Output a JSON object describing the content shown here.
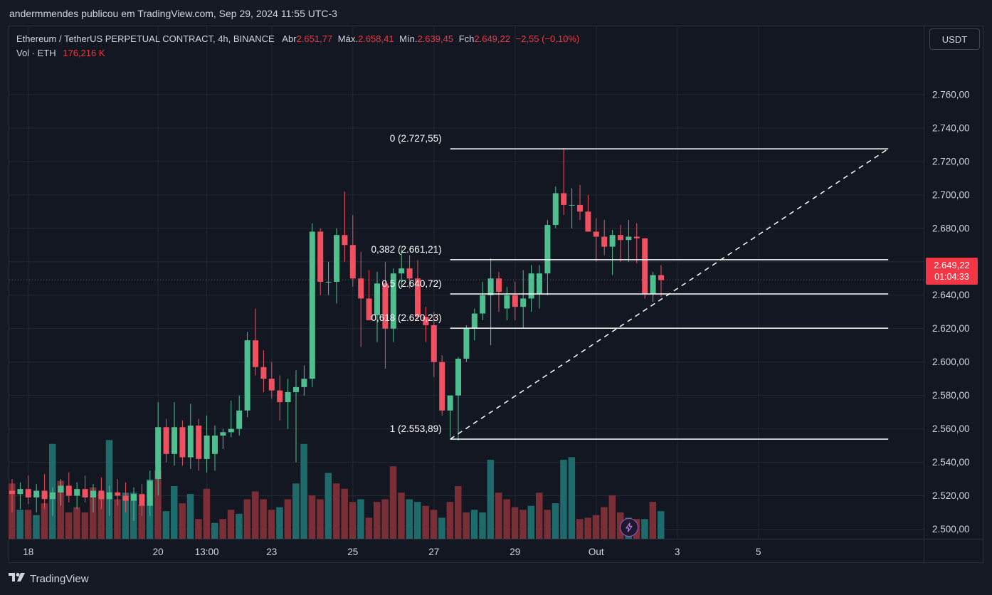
{
  "header": {
    "published": "andermmendes publicou em TradingView.com, Sep 29, 2024 11:55 UTC-3"
  },
  "legend": {
    "symbol": "Ethereum / TetherUS PERPETUAL CONTRACT, 4h, BINANCE",
    "open_label": "Abr",
    "open": "2.651,77",
    "high_label": "Máx.",
    "high": "2.658,41",
    "low_label": "Mín.",
    "low": "2.639,45",
    "close_label": "Fch",
    "close": "2.649,22",
    "change": "−2,55 (−0,10%)",
    "vol_label": "Vol · ETH",
    "vol_value": "176,216 K"
  },
  "currency": "USDT",
  "price_tag": {
    "price": "2.649,22",
    "countdown": "01:04:33"
  },
  "footer": {
    "brand": "TradingView"
  },
  "colors": {
    "up": "#26a69a",
    "down": "#ef5350",
    "up_vol": "#1f6b6b",
    "down_vol": "#7a2e35",
    "up_body": "#4fbf8f",
    "down_body": "#f0505f",
    "tag": "#f23645",
    "grid": "#242832"
  },
  "chart_data": {
    "type": "candlestick",
    "title": "Ethereum / TetherUS PERPETUAL CONTRACT, 4h, BINANCE",
    "ylim": [
      2485,
      2775
    ],
    "y_ticks": [
      2500,
      2520,
      2540,
      2560,
      2580,
      2600,
      2620,
      2640,
      2660,
      2680,
      2700,
      2720,
      2740,
      2760
    ],
    "y_tick_labels": [
      "2.500,00",
      "2.520,00",
      "2.540,00",
      "2.560,00",
      "2.580,00",
      "2.600,00",
      "2.620,00",
      "2.640,00",
      "2.660,00",
      "2.680,00",
      "2.700,00",
      "2.720,00",
      "2.740,00",
      "2.760,00"
    ],
    "x_labels": [
      "18",
      "20",
      "13:00",
      "23",
      "25",
      "27",
      "29",
      "Out",
      "3",
      "5"
    ],
    "x_label_bar_index": [
      2,
      18,
      24,
      32,
      42,
      52,
      62,
      72,
      82,
      92
    ],
    "last_price": 2649.22,
    "candles": [
      {
        "o": 2523,
        "h": 2530,
        "l": 2510,
        "c": 2521
      },
      {
        "o": 2521,
        "h": 2528,
        "l": 2512,
        "c": 2524
      },
      {
        "o": 2524,
        "h": 2532,
        "l": 2515,
        "c": 2519
      },
      {
        "o": 2519,
        "h": 2527,
        "l": 2510,
        "c": 2523
      },
      {
        "o": 2523,
        "h": 2533,
        "l": 2512,
        "c": 2518
      },
      {
        "o": 2518,
        "h": 2525,
        "l": 2508,
        "c": 2522
      },
      {
        "o": 2522,
        "h": 2530,
        "l": 2514,
        "c": 2526
      },
      {
        "o": 2526,
        "h": 2534,
        "l": 2516,
        "c": 2520
      },
      {
        "o": 2520,
        "h": 2528,
        "l": 2512,
        "c": 2524
      },
      {
        "o": 2524,
        "h": 2532,
        "l": 2516,
        "c": 2519
      },
      {
        "o": 2519,
        "h": 2527,
        "l": 2510,
        "c": 2523
      },
      {
        "o": 2523,
        "h": 2531,
        "l": 2512,
        "c": 2518
      },
      {
        "o": 2518,
        "h": 2526,
        "l": 2508,
        "c": 2522
      },
      {
        "o": 2522,
        "h": 2530,
        "l": 2514,
        "c": 2520
      },
      {
        "o": 2520,
        "h": 2528,
        "l": 2510,
        "c": 2517
      },
      {
        "o": 2517,
        "h": 2525,
        "l": 2505,
        "c": 2521
      },
      {
        "o": 2521,
        "h": 2527,
        "l": 2508,
        "c": 2514
      },
      {
        "o": 2514,
        "h": 2535,
        "l": 2508,
        "c": 2529
      },
      {
        "o": 2530,
        "h": 2576,
        "l": 2520,
        "c": 2561
      },
      {
        "o": 2561,
        "h": 2566,
        "l": 2540,
        "c": 2545
      },
      {
        "o": 2545,
        "h": 2576,
        "l": 2538,
        "c": 2561
      },
      {
        "o": 2561,
        "h": 2565,
        "l": 2538,
        "c": 2543
      },
      {
        "o": 2543,
        "h": 2575,
        "l": 2536,
        "c": 2562
      },
      {
        "o": 2562,
        "h": 2566,
        "l": 2535,
        "c": 2542
      },
      {
        "o": 2542,
        "h": 2568,
        "l": 2534,
        "c": 2556
      },
      {
        "o": 2545,
        "h": 2562,
        "l": 2535,
        "c": 2556
      },
      {
        "o": 2556,
        "h": 2560,
        "l": 2548,
        "c": 2558
      },
      {
        "o": 2558,
        "h": 2577,
        "l": 2555,
        "c": 2560
      },
      {
        "o": 2560,
        "h": 2580,
        "l": 2556,
        "c": 2571
      },
      {
        "o": 2571,
        "h": 2618,
        "l": 2567,
        "c": 2613
      },
      {
        "o": 2613,
        "h": 2632,
        "l": 2592,
        "c": 2597
      },
      {
        "o": 2597,
        "h": 2607,
        "l": 2582,
        "c": 2590
      },
      {
        "o": 2590,
        "h": 2600,
        "l": 2578,
        "c": 2583
      },
      {
        "o": 2583,
        "h": 2592,
        "l": 2565,
        "c": 2576
      },
      {
        "o": 2576,
        "h": 2590,
        "l": 2560,
        "c": 2582
      },
      {
        "o": 2582,
        "h": 2595,
        "l": 2540,
        "c": 2585
      },
      {
        "o": 2585,
        "h": 2598,
        "l": 2580,
        "c": 2590
      },
      {
        "o": 2590,
        "h": 2683,
        "l": 2585,
        "c": 2678
      },
      {
        "o": 2678,
        "h": 2680,
        "l": 2640,
        "c": 2648
      },
      {
        "o": 2648,
        "h": 2660,
        "l": 2640,
        "c": 2648
      },
      {
        "o": 2648,
        "h": 2680,
        "l": 2635,
        "c": 2676
      },
      {
        "o": 2676,
        "h": 2702,
        "l": 2660,
        "c": 2670
      },
      {
        "o": 2670,
        "h": 2688,
        "l": 2645,
        "c": 2650
      },
      {
        "o": 2650,
        "h": 2666,
        "l": 2609,
        "c": 2638
      },
      {
        "o": 2638,
        "h": 2655,
        "l": 2625,
        "c": 2625
      },
      {
        "o": 2628,
        "h": 2654,
        "l": 2612,
        "c": 2647
      },
      {
        "o": 2647,
        "h": 2660,
        "l": 2596,
        "c": 2620
      },
      {
        "o": 2620,
        "h": 2656,
        "l": 2612,
        "c": 2653
      },
      {
        "o": 2653,
        "h": 2668,
        "l": 2644,
        "c": 2656
      },
      {
        "o": 2656,
        "h": 2664,
        "l": 2644,
        "c": 2650
      },
      {
        "o": 2650,
        "h": 2661,
        "l": 2625,
        "c": 2627
      },
      {
        "o": 2627,
        "h": 2633,
        "l": 2612,
        "c": 2622
      },
      {
        "o": 2622,
        "h": 2630,
        "l": 2591,
        "c": 2600
      },
      {
        "o": 2600,
        "h": 2604,
        "l": 2568,
        "c": 2571
      },
      {
        "o": 2571,
        "h": 2578,
        "l": 2555,
        "c": 2580
      },
      {
        "o": 2580,
        "h": 2603,
        "l": 2553,
        "c": 2602
      },
      {
        "o": 2602,
        "h": 2622,
        "l": 2600,
        "c": 2620
      },
      {
        "o": 2620,
        "h": 2632,
        "l": 2613,
        "c": 2629
      },
      {
        "o": 2629,
        "h": 2648,
        "l": 2625,
        "c": 2640
      },
      {
        "o": 2640,
        "h": 2662,
        "l": 2610,
        "c": 2650
      },
      {
        "o": 2650,
        "h": 2654,
        "l": 2630,
        "c": 2642
      },
      {
        "o": 2632,
        "h": 2645,
        "l": 2625,
        "c": 2640
      },
      {
        "o": 2640,
        "h": 2648,
        "l": 2625,
        "c": 2633
      },
      {
        "o": 2633,
        "h": 2655,
        "l": 2620,
        "c": 2638
      },
      {
        "o": 2638,
        "h": 2658,
        "l": 2630,
        "c": 2653
      },
      {
        "o": 2641,
        "h": 2658,
        "l": 2632,
        "c": 2653
      },
      {
        "o": 2653,
        "h": 2685,
        "l": 2640,
        "c": 2682
      },
      {
        "o": 2682,
        "h": 2705,
        "l": 2680,
        "c": 2701
      },
      {
        "o": 2701,
        "h": 2728,
        "l": 2688,
        "c": 2694
      },
      {
        "o": 2694,
        "h": 2704,
        "l": 2680,
        "c": 2694
      },
      {
        "o": 2694,
        "h": 2706,
        "l": 2685,
        "c": 2690
      },
      {
        "o": 2690,
        "h": 2700,
        "l": 2678,
        "c": 2678
      },
      {
        "o": 2678,
        "h": 2686,
        "l": 2660,
        "c": 2675
      },
      {
        "o": 2675,
        "h": 2685,
        "l": 2664,
        "c": 2669
      },
      {
        "o": 2669,
        "h": 2679,
        "l": 2652,
        "c": 2676
      },
      {
        "o": 2676,
        "h": 2682,
        "l": 2660,
        "c": 2673
      },
      {
        "o": 2673,
        "h": 2685,
        "l": 2660,
        "c": 2675
      },
      {
        "o": 2675,
        "h": 2683,
        "l": 2659,
        "c": 2674
      },
      {
        "o": 2674,
        "h": 2674,
        "l": 2638,
        "c": 2641
      },
      {
        "o": 2641,
        "h": 2654,
        "l": 2636,
        "c": 2652
      },
      {
        "o": 2652,
        "h": 2658,
        "l": 2639,
        "c": 2649
      }
    ],
    "volume": [
      {
        "v": 0.42,
        "up": false
      },
      {
        "v": 0.22,
        "up": true
      },
      {
        "v": 0.22,
        "up": false
      },
      {
        "v": 0.18,
        "up": true
      },
      {
        "v": 0.27,
        "up": false
      },
      {
        "v": 0.72,
        "up": true
      },
      {
        "v": 0.44,
        "up": false
      },
      {
        "v": 0.2,
        "up": false
      },
      {
        "v": 0.24,
        "up": false
      },
      {
        "v": 0.2,
        "up": false
      },
      {
        "v": 0.39,
        "up": false
      },
      {
        "v": 0.35,
        "up": false
      },
      {
        "v": 0.75,
        "up": true
      },
      {
        "v": 0.3,
        "up": false
      },
      {
        "v": 0.35,
        "up": true
      },
      {
        "v": 0.35,
        "up": true
      },
      {
        "v": 0.26,
        "up": false
      },
      {
        "v": 0.45,
        "up": true
      },
      {
        "v": 0.52,
        "up": false
      },
      {
        "v": 0.21,
        "up": true
      },
      {
        "v": 0.4,
        "up": true
      },
      {
        "v": 0.27,
        "up": false
      },
      {
        "v": 0.34,
        "up": true
      },
      {
        "v": 0.15,
        "up": false
      },
      {
        "v": 0.38,
        "up": false
      },
      {
        "v": 0.12,
        "up": true
      },
      {
        "v": 0.15,
        "up": false
      },
      {
        "v": 0.22,
        "up": false
      },
      {
        "v": 0.19,
        "up": true
      },
      {
        "v": 0.3,
        "up": false
      },
      {
        "v": 0.36,
        "up": false
      },
      {
        "v": 0.3,
        "up": false
      },
      {
        "v": 0.22,
        "up": false
      },
      {
        "v": 0.24,
        "up": true
      },
      {
        "v": 0.3,
        "up": false
      },
      {
        "v": 0.42,
        "up": true
      },
      {
        "v": 0.72,
        "up": true
      },
      {
        "v": 0.33,
        "up": false
      },
      {
        "v": 0.3,
        "up": false
      },
      {
        "v": 0.5,
        "up": true
      },
      {
        "v": 0.42,
        "up": false
      },
      {
        "v": 0.38,
        "up": false
      },
      {
        "v": 0.28,
        "up": false
      },
      {
        "v": 0.3,
        "up": true
      },
      {
        "v": 0.16,
        "up": false
      },
      {
        "v": 0.28,
        "up": false
      },
      {
        "v": 0.3,
        "up": false
      },
      {
        "v": 0.55,
        "up": false
      },
      {
        "v": 0.35,
        "up": false
      },
      {
        "v": 0.3,
        "up": true
      },
      {
        "v": 0.28,
        "up": true
      },
      {
        "v": 0.25,
        "up": false
      },
      {
        "v": 0.22,
        "up": false
      },
      {
        "v": 0.16,
        "up": true
      },
      {
        "v": 0.28,
        "up": false
      },
      {
        "v": 0.4,
        "up": false
      },
      {
        "v": 0.2,
        "up": false
      },
      {
        "v": 0.22,
        "up": true
      },
      {
        "v": 0.2,
        "up": true
      },
      {
        "v": 0.6,
        "up": true
      },
      {
        "v": 0.35,
        "up": false
      },
      {
        "v": 0.3,
        "up": false
      },
      {
        "v": 0.24,
        "up": false
      },
      {
        "v": 0.22,
        "up": false
      },
      {
        "v": 0.25,
        "up": true
      },
      {
        "v": 0.35,
        "up": false
      },
      {
        "v": 0.22,
        "up": false
      },
      {
        "v": 0.27,
        "up": true
      },
      {
        "v": 0.6,
        "up": true
      },
      {
        "v": 0.62,
        "up": true
      },
      {
        "v": 0.15,
        "up": false
      },
      {
        "v": 0.16,
        "up": false
      },
      {
        "v": 0.18,
        "up": false
      },
      {
        "v": 0.24,
        "up": false
      },
      {
        "v": 0.33,
        "up": false
      },
      {
        "v": 0.2,
        "up": false
      },
      {
        "v": 0.16,
        "up": true
      },
      {
        "v": 0.15,
        "up": false
      },
      {
        "v": 0.15,
        "up": true
      },
      {
        "v": 0.28,
        "up": false
      },
      {
        "v": 0.21,
        "up": true
      }
    ],
    "fibonacci": {
      "start_bar": 54,
      "end_bar": 108,
      "levels": [
        {
          "ratio": "0",
          "price": 2727.55,
          "label": "0 (2.727,55)"
        },
        {
          "ratio": "0,382",
          "price": 2661.21,
          "label": "0,382 (2.661,21)"
        },
        {
          "ratio": "0,5",
          "price": 2640.72,
          "label": "0,5 (2.640,72)"
        },
        {
          "ratio": "0,618",
          "price": 2620.23,
          "label": "0,618 (2.620,23)"
        },
        {
          "ratio": "1",
          "price": 2553.89,
          "label": "1 (2.553,89)"
        }
      ],
      "trend_line": {
        "from_bar": 54,
        "from_price": 2553.89,
        "to_bar": 108,
        "to_price": 2727.55
      }
    }
  }
}
